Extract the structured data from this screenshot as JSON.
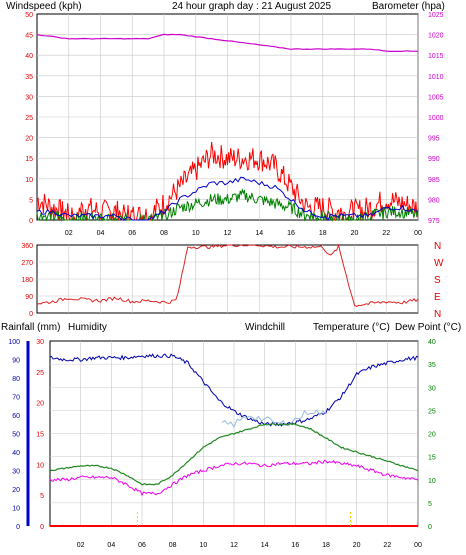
{
  "header": {
    "wind_label": "Windspeed (kph)",
    "title": "24 hour graph day : 21 August 2025",
    "baro_label": "Barometer (hpa)"
  },
  "lower_header": {
    "rain_label": "Rainfall (mm)",
    "hum_label": "Humidity",
    "windchill_label": "Windchill",
    "temp_label": "Temperature (°C)",
    "dew_label": "Dew Point (°C)"
  },
  "colors": {
    "wind": "#e00000",
    "baro": "#cc00cc",
    "gust": "#ff0000",
    "avg": "#0000cc",
    "green": "#008000",
    "humidity": "#0000aa",
    "temp": "#228822",
    "dew": "#ee00ee",
    "windchill": "#99bbdd",
    "rain": "#ff0000",
    "grid": "#c8c8c8",
    "dir": "#dd2222"
  },
  "chart_data": [
    {
      "type": "line",
      "name": "wind-baro",
      "x_ticks": [
        "02",
        "04",
        "06",
        "08",
        "10",
        "12",
        "14",
        "16",
        "18",
        "20",
        "22",
        "00"
      ],
      "y_left_ticks": [
        "0",
        "5",
        "10",
        "15",
        "20",
        "25",
        "30",
        "35",
        "40",
        "45",
        "50"
      ],
      "y_right_ticks": [
        "975",
        "980",
        "985",
        "990",
        "995",
        "1000",
        "1005",
        "1010",
        "1015",
        "1020",
        "1025"
      ],
      "ylim_left": [
        0,
        50
      ],
      "ylim_right": [
        975,
        1025
      ],
      "x": [
        0,
        1,
        2,
        3,
        4,
        5,
        6,
        7,
        8,
        9,
        10,
        11,
        12,
        13,
        14,
        15,
        16,
        17,
        18,
        19,
        20,
        21,
        22,
        23,
        24
      ],
      "series": [
        {
          "name": "Windspeed (kph)",
          "role": "gust",
          "values": [
            5,
            3,
            1,
            3,
            2,
            2,
            1,
            1,
            4,
            8,
            12,
            16,
            15,
            15,
            15,
            13,
            8,
            3,
            3,
            2,
            2,
            3,
            5,
            4,
            3
          ]
        },
        {
          "name": "",
          "role": "avg",
          "values": [
            2,
            2,
            1,
            1,
            1,
            1,
            0,
            0,
            2,
            5,
            7,
            9,
            9,
            10,
            9,
            8,
            5,
            2,
            1,
            1,
            1,
            1,
            3,
            3,
            2
          ]
        },
        {
          "name": "",
          "role": "min",
          "values": [
            1,
            1,
            0,
            1,
            0,
            0,
            0,
            0,
            1,
            3,
            4,
            5,
            5,
            6,
            5,
            4,
            3,
            1,
            1,
            0,
            0,
            1,
            2,
            2,
            1
          ]
        },
        {
          "name": "Barometer (hpa)",
          "role": "baro",
          "values": [
            1020,
            1019.5,
            1019,
            1019,
            1019,
            1019,
            1019,
            1019,
            1020,
            1020,
            1019.5,
            1019,
            1018.5,
            1018,
            1017.5,
            1017,
            1016.5,
            1016.5,
            1016.5,
            1016.5,
            1016.5,
            1016.5,
            1016,
            1016,
            1016
          ]
        }
      ]
    },
    {
      "type": "line",
      "name": "wind-direction",
      "x_ticks": [
        "02",
        "04",
        "06",
        "08",
        "10",
        "12",
        "14",
        "16",
        "18",
        "20",
        "22",
        "00"
      ],
      "y_ticks": [
        "0",
        "90",
        "180",
        "270",
        "360"
      ],
      "y_compass": [
        "N",
        "W",
        "S",
        "E",
        "N"
      ],
      "ylim": [
        0,
        360
      ],
      "x": [
        0,
        1,
        2,
        3,
        4,
        5,
        6,
        7,
        7.8,
        8.2,
        8.8,
        9.5,
        10,
        11,
        12,
        13,
        14,
        15,
        16,
        17,
        18,
        18.5,
        19,
        20,
        21,
        22,
        23,
        24
      ],
      "values": [
        50,
        60,
        80,
        70,
        65,
        80,
        60,
        65,
        60,
        55,
        70,
        350,
        350,
        350,
        360,
        360,
        360,
        350,
        350,
        350,
        350,
        300,
        350,
        40,
        50,
        60,
        55,
        70
      ]
    },
    {
      "type": "line",
      "name": "temp-humidity-rain",
      "x_ticks": [
        "02",
        "04",
        "06",
        "08",
        "10",
        "12",
        "14",
        "16",
        "18",
        "20",
        "22",
        "00"
      ],
      "y_left_ticks": [
        "0",
        "10",
        "20",
        "30",
        "40",
        "50",
        "60",
        "70",
        "80",
        "90",
        "100"
      ],
      "y_rain_ticks": [
        "0",
        "5",
        "10",
        "15",
        "20",
        "25",
        "30"
      ],
      "y_right_ticks": [
        "0",
        "5",
        "10",
        "15",
        "20",
        "25",
        "30",
        "35",
        "40"
      ],
      "ylim_humidity": [
        0,
        100
      ],
      "ylim_rain": [
        0,
        30
      ],
      "ylim_temp": [
        0,
        40
      ],
      "x": [
        0,
        1,
        2,
        3,
        4,
        5,
        6,
        7,
        8,
        9,
        10,
        11,
        12,
        13,
        14,
        15,
        16,
        17,
        18,
        19,
        20,
        21,
        22,
        23,
        24
      ],
      "series": [
        {
          "name": "Humidity",
          "values": [
            91,
            90,
            90,
            91,
            91,
            91,
            92,
            92,
            92,
            88,
            78,
            68,
            62,
            58,
            55,
            55,
            56,
            58,
            62,
            70,
            82,
            86,
            88,
            90,
            91
          ]
        },
        {
          "name": "Temperature (°C)",
          "values": [
            12,
            12.5,
            13,
            13,
            12.5,
            11,
            9,
            9,
            11,
            14,
            17,
            19,
            20,
            21,
            22,
            22,
            22,
            21,
            19,
            17,
            16,
            15,
            14,
            13,
            12
          ]
        },
        {
          "name": "Dew Point (°C)",
          "values": [
            10,
            10,
            10.5,
            10.5,
            10.5,
            9,
            7,
            7,
            9,
            11,
            12,
            13,
            13.5,
            13.5,
            13,
            13.5,
            13.5,
            13.5,
            14,
            13.5,
            13,
            12,
            11,
            10.5,
            10
          ]
        },
        {
          "name": "Windchill",
          "values": [
            null,
            null,
            null,
            null,
            null,
            null,
            null,
            null,
            null,
            null,
            null,
            22,
            22,
            24,
            23,
            22,
            23,
            25,
            24,
            null,
            null,
            null,
            null,
            null,
            null
          ]
        },
        {
          "name": "Rainfall (mm)",
          "values": [
            0,
            0,
            0,
            0,
            0,
            0,
            0,
            0,
            0,
            0,
            0,
            0,
            0,
            0,
            0,
            0,
            0,
            0,
            0,
            0,
            0,
            0,
            0,
            0,
            0
          ]
        }
      ]
    }
  ]
}
